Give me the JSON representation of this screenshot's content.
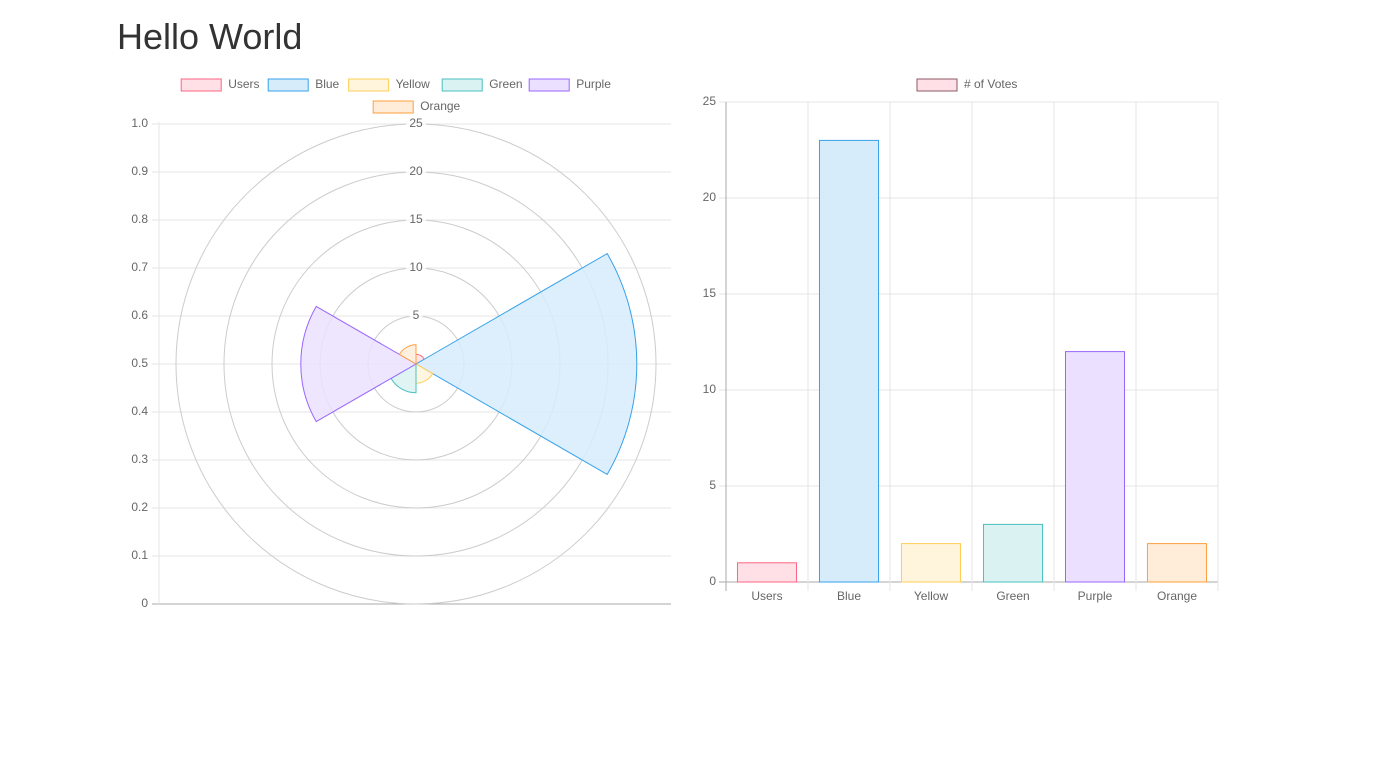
{
  "page": {
    "title": "Hello World"
  },
  "chart_data": [
    {
      "type": "polarArea",
      "categories": [
        "Users",
        "Blue",
        "Yellow",
        "Green",
        "Purple",
        "Orange"
      ],
      "values": [
        1,
        23,
        2,
        3,
        12,
        2
      ],
      "legend": "top",
      "r_ticks": [
        "5",
        "10",
        "15",
        "20",
        "25"
      ],
      "r_range": [
        0,
        25
      ],
      "y_axis_ticks": [
        "0",
        "0.1",
        "0.2",
        "0.3",
        "0.4",
        "0.5",
        "0.6",
        "0.7",
        "0.8",
        "0.9",
        "1.0"
      ],
      "y_axis_range": [
        0,
        1
      ],
      "grid": true
    },
    {
      "type": "bar",
      "categories": [
        "Users",
        "Blue",
        "Yellow",
        "Green",
        "Purple",
        "Orange"
      ],
      "series": [
        {
          "name": "# of Votes",
          "values": [
            1,
            23,
            2,
            3,
            12,
            2
          ]
        }
      ],
      "legend": "top",
      "y_ticks": [
        "0",
        "5",
        "10",
        "15",
        "20",
        "25"
      ],
      "ylim": [
        0,
        25
      ],
      "grid": true
    }
  ],
  "colors": {
    "fills": [
      "#ffe0e6",
      "#d7ecfb",
      "#fff5dd",
      "#dbf2f2",
      "#ebe0ff",
      "#ffecd9"
    ],
    "borders": [
      "#ff6384",
      "#36a2eb",
      "#ffce56",
      "#4bc0c0",
      "#9966ff",
      "#ff9f40"
    ],
    "grid": "#e5e5e5",
    "ring": "#cccccc",
    "axis": "#aaaaaa"
  }
}
